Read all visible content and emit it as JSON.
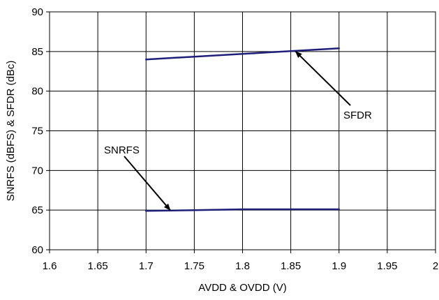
{
  "chart_data": {
    "type": "line",
    "xlabel": "AVDD & OVDD (V)",
    "ylabel": "SNRFS (dBFS) & SFDR (dBc)",
    "xlim": [
      1.6,
      2
    ],
    "ylim": [
      60,
      90
    ],
    "x_ticks": [
      "1.6",
      "1.65",
      "1.7",
      "1.75",
      "1.8",
      "1.85",
      "1.9",
      "1.95",
      "2"
    ],
    "y_ticks": [
      "60",
      "65",
      "70",
      "75",
      "80",
      "85",
      "90"
    ],
    "grid": true,
    "line_color": "#1f1f7a",
    "series": [
      {
        "name": "SFDR",
        "x": [
          1.7,
          1.75,
          1.8,
          1.85,
          1.9
        ],
        "y": [
          84.0,
          84.35,
          84.7,
          85.05,
          85.4
        ]
      },
      {
        "name": "SNRFS",
        "x": [
          1.7,
          1.75,
          1.8,
          1.85,
          1.9
        ],
        "y": [
          64.9,
          65.0,
          65.1,
          65.1,
          65.1
        ]
      }
    ],
    "annotations": [
      {
        "text": "SFDR",
        "target": [
          1.855,
          85.0
        ]
      },
      {
        "text": "SNRFS",
        "target": [
          1.725,
          65.0
        ]
      }
    ]
  }
}
